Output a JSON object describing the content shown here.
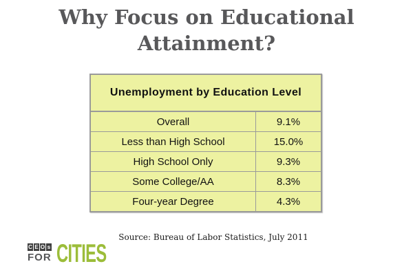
{
  "title": {
    "line1": "Why Focus on Educational",
    "line2": "Attainment?"
  },
  "table": {
    "header": "Unemployment by Education Level",
    "rows": [
      {
        "label": "Overall",
        "value": "9.1%"
      },
      {
        "label": "Less than High School",
        "value": "15.0%"
      },
      {
        "label": "High School Only",
        "value": "9.3%"
      },
      {
        "label": "Some College/AA",
        "value": "8.3%"
      },
      {
        "label": "Four-year Degree",
        "value": "4.3%"
      }
    ]
  },
  "source": "Source: Bureau of Labor Statistics, July 2011",
  "logo": {
    "tiles": [
      "C",
      "E",
      "O",
      "s"
    ],
    "for_label": "FOR",
    "cities_label": "CITIES"
  },
  "colors": {
    "table_background": "#edf2a1",
    "table_border": "#9a9a9a",
    "title_text": "#58585a",
    "logo_green": "#9cbd3a",
    "logo_tile_background": "#404040"
  },
  "chart_data": {
    "type": "table",
    "title": "Unemployment by Education Level",
    "categories": [
      "Overall",
      "Less than High School",
      "High School Only",
      "Some College/AA",
      "Four-year Degree"
    ],
    "values": [
      9.1,
      15.0,
      9.3,
      8.3,
      4.3
    ],
    "value_unit": "%",
    "source": "Source: Bureau of Labor Statistics, July 2011"
  }
}
